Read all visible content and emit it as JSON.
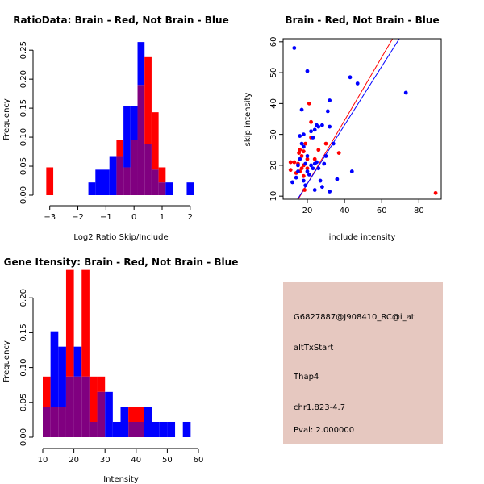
{
  "colors": {
    "brain": "#ff0000",
    "not_brain": "#0000ff",
    "overlap": "#800080",
    "info_bg": "#e6c8c0",
    "pval": "#b00000"
  },
  "chart_data": [
    {
      "type": "bar",
      "title": "RatioData: Brain - Red, Not Brain - Blue",
      "xlabel": "Log2 Ratio Skip/Include",
      "ylabel": "Frequency",
      "xlim": [
        -3.25,
        2.35
      ],
      "ylim": [
        0,
        0.27
      ],
      "xticks": [
        -3,
        -2,
        -1,
        0,
        1,
        2
      ],
      "yticks": [
        0.0,
        0.05,
        0.1,
        0.15,
        0.2,
        0.25
      ],
      "ytick_labels": [
        "0.00",
        "0.05",
        "0.10",
        "0.15",
        "0.20",
        "0.25"
      ],
      "bin_width": 0.25,
      "series": [
        {
          "name": "Brain",
          "bins": [
            [
              -3.0,
              0.048
            ],
            [
              -0.5,
              0.095
            ],
            [
              -0.25,
              0.048
            ],
            [
              0.0,
              0.095
            ],
            [
              0.25,
              0.19
            ],
            [
              0.5,
              0.238
            ],
            [
              0.75,
              0.143
            ],
            [
              1.0,
              0.048
            ]
          ]
        },
        {
          "name": "Not Brain",
          "bins": [
            [
              -1.5,
              0.022
            ],
            [
              -1.25,
              0.044
            ],
            [
              -1.0,
              0.044
            ],
            [
              -0.75,
              0.066
            ],
            [
              -0.5,
              0.066
            ],
            [
              -0.25,
              0.154
            ],
            [
              0.0,
              0.154
            ],
            [
              0.25,
              0.264
            ],
            [
              0.5,
              0.088
            ],
            [
              0.75,
              0.044
            ],
            [
              1.0,
              0.022
            ],
            [
              1.25,
              0.022
            ],
            [
              2.0,
              0.022
            ]
          ]
        }
      ]
    },
    {
      "type": "scatter",
      "title": "Brain - Red, Not Brain - Blue",
      "xlabel": "include intensity",
      "ylabel": "skip intensity",
      "xlim": [
        7,
        92
      ],
      "ylim": [
        9,
        61
      ],
      "xticks": [
        20,
        40,
        60,
        80
      ],
      "yticks": [
        10,
        20,
        30,
        40,
        50,
        60
      ],
      "series": [
        {
          "name": "Brain",
          "points": [
            [
              11,
              18.5
            ],
            [
              11,
              21
            ],
            [
              13,
              21
            ],
            [
              14,
              17.5
            ],
            [
              15,
              20.5
            ],
            [
              15.5,
              24
            ],
            [
              16,
              25
            ],
            [
              16,
              18
            ],
            [
              17,
              23
            ],
            [
              17,
              19
            ],
            [
              18,
              24.5
            ],
            [
              18,
              20
            ],
            [
              18,
              16.5
            ],
            [
              18.5,
              12
            ],
            [
              19,
              27
            ],
            [
              20,
              19
            ],
            [
              20,
              22
            ],
            [
              21,
              40
            ],
            [
              22,
              29
            ],
            [
              22,
              34
            ],
            [
              24,
              22
            ],
            [
              26,
              25
            ],
            [
              30,
              27
            ],
            [
              37,
              24
            ],
            [
              89,
              11
            ]
          ]
        },
        {
          "name": "Not Brain",
          "points": [
            [
              12,
              14.5
            ],
            [
              13,
              58
            ],
            [
              14,
              16
            ],
            [
              15,
              18
            ],
            [
              15,
              20
            ],
            [
              16,
              22
            ],
            [
              16,
              29.5
            ],
            [
              17,
              38
            ],
            [
              17,
              27
            ],
            [
              18,
              30
            ],
            [
              18,
              15
            ],
            [
              18,
              26
            ],
            [
              19,
              20.5
            ],
            [
              19,
              13.5
            ],
            [
              20,
              50.5
            ],
            [
              20,
              23
            ],
            [
              20,
              18
            ],
            [
              21,
              17
            ],
            [
              22,
              20
            ],
            [
              22,
              31
            ],
            [
              23,
              19
            ],
            [
              23,
              29
            ],
            [
              24,
              31.5
            ],
            [
              24,
              12
            ],
            [
              24,
              20.5
            ],
            [
              25,
              33
            ],
            [
              25,
              21
            ],
            [
              26,
              32.5
            ],
            [
              26,
              19
            ],
            [
              27,
              15
            ],
            [
              28,
              33
            ],
            [
              28,
              13
            ],
            [
              29,
              20.5
            ],
            [
              30,
              23
            ],
            [
              31,
              37.5
            ],
            [
              32,
              41
            ],
            [
              32,
              32.5
            ],
            [
              32,
              11.5
            ],
            [
              34,
              27
            ],
            [
              36,
              15.5
            ],
            [
              43,
              48.5
            ],
            [
              44,
              18
            ],
            [
              47,
              46.5
            ],
            [
              73,
              43.5
            ]
          ]
        }
      ],
      "fit_lines": [
        {
          "name": "Brain",
          "intercept": -6.5,
          "slope": 1.025
        },
        {
          "name": "Not Brain",
          "intercept": -5.0,
          "slope": 0.95
        }
      ]
    },
    {
      "type": "bar",
      "title": "Gene Itensity: Brain - Red, Not Brain - Blue",
      "xlabel": "Intensity",
      "ylabel": "Frequency",
      "xlim": [
        10,
        60
      ],
      "ylim": [
        0,
        0.25
      ],
      "xticks": [
        10,
        20,
        30,
        40,
        50,
        60
      ],
      "yticks": [
        0.0,
        0.05,
        0.1,
        0.15,
        0.2
      ],
      "ytick_labels": [
        "0.00",
        "0.05",
        "0.10",
        "0.15",
        "0.20"
      ],
      "bin_width": 2.5,
      "series": [
        {
          "name": "Brain",
          "bins": [
            [
              11.25,
              0.087
            ],
            [
              13.75,
              0.043
            ],
            [
              16.25,
              0.043
            ],
            [
              18.75,
              0.24
            ],
            [
              21.25,
              0.087
            ],
            [
              23.75,
              0.24
            ],
            [
              26.25,
              0.087
            ],
            [
              28.75,
              0.087
            ],
            [
              38.75,
              0.043
            ],
            [
              41.25,
              0.043
            ]
          ]
        },
        {
          "name": "Not Brain",
          "bins": [
            [
              11.25,
              0.043
            ],
            [
              13.75,
              0.152
            ],
            [
              16.25,
              0.13
            ],
            [
              18.75,
              0.087
            ],
            [
              21.25,
              0.13
            ],
            [
              23.75,
              0.087
            ],
            [
              26.25,
              0.022
            ],
            [
              28.75,
              0.065
            ],
            [
              31.25,
              0.065
            ],
            [
              33.75,
              0.022
            ],
            [
              36.25,
              0.043
            ],
            [
              38.75,
              0.022
            ],
            [
              41.25,
              0.022
            ],
            [
              43.75,
              0.043
            ],
            [
              46.25,
              0.022
            ],
            [
              48.75,
              0.022
            ],
            [
              51.25,
              0.022
            ],
            [
              56.25,
              0.022
            ]
          ]
        }
      ]
    }
  ],
  "info_panel": {
    "probe_id": "G6827887@J908410_RC@i_at",
    "event_type": "altTxStart",
    "gene": "Thap4",
    "location": "chr1.823-4.7",
    "pval": "Pval: 2.000000"
  }
}
